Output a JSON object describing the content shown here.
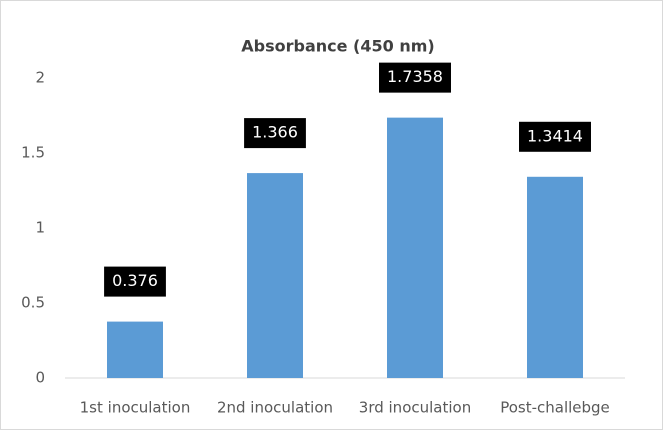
{
  "chart_data": {
    "type": "bar",
    "title": "Absorbance (450 nm)",
    "categories": [
      "1st inoculation",
      "2nd inoculation",
      "3rd inoculation",
      "Post-challebge"
    ],
    "values": [
      0.376,
      1.366,
      1.7358,
      1.3414
    ],
    "color": "#5b9bd5",
    "ylim": [
      0,
      2
    ],
    "yticks": [
      0,
      0.5,
      1,
      1.5,
      2
    ],
    "grid": false
  }
}
